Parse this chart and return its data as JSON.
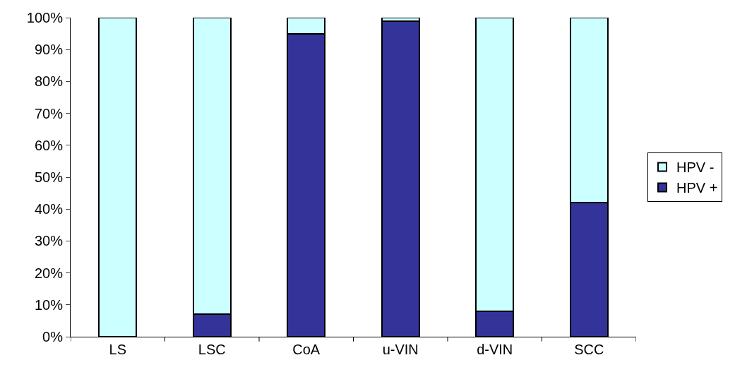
{
  "chart_data": {
    "type": "bar",
    "stacked": true,
    "categories": [
      "LS",
      "LSC",
      "CoA",
      "u-VIN",
      "d-VIN",
      "SCC"
    ],
    "series": [
      {
        "name": "HPV +",
        "color": "#333399",
        "values": [
          0,
          7,
          95,
          99,
          8,
          42
        ]
      },
      {
        "name": "HPV -",
        "color": "#ccffff",
        "values": [
          100,
          93,
          5,
          1,
          92,
          58
        ]
      }
    ],
    "ylim": [
      0,
      100
    ],
    "yticks": [
      {
        "value": 0,
        "label": "0%"
      },
      {
        "value": 10,
        "label": "10%"
      },
      {
        "value": 20,
        "label": "20%"
      },
      {
        "value": 30,
        "label": "30%"
      },
      {
        "value": 40,
        "label": "40%"
      },
      {
        "value": 50,
        "label": "50%"
      },
      {
        "value": 60,
        "label": "60%"
      },
      {
        "value": 70,
        "label": "70%"
      },
      {
        "value": 80,
        "label": "80%"
      },
      {
        "value": 90,
        "label": "90%"
      },
      {
        "value": 100,
        "label": "100%"
      }
    ],
    "legend": "right"
  }
}
